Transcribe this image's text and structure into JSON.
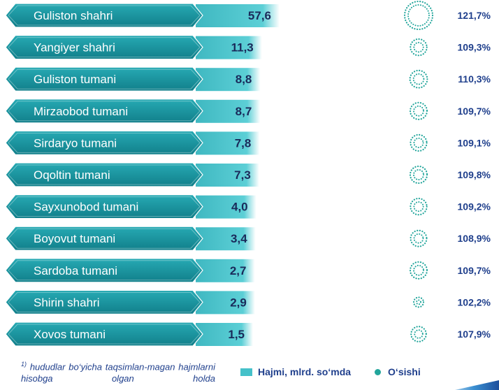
{
  "chart_data": {
    "type": "bar",
    "categories": [
      "Guliston shahri",
      "Yangiyer shahri",
      "Guliston  tumani",
      "Mirzaobod  tumani",
      "Sirdaryo tumani",
      "Oqoltin  tumani",
      "Sayxunobod  tumani",
      "Boyovut  tumani",
      "Sardoba tumani",
      "Shirin shahri",
      "Xovos tumani"
    ],
    "series": [
      {
        "name": "Hajmi, mlrd. so‘mda",
        "values": [
          57.6,
          11.3,
          8.8,
          8.7,
          7.8,
          7.3,
          4.0,
          3.4,
          2.7,
          2.9,
          1.5
        ],
        "labels": [
          "57,6",
          "11,3",
          "8,8",
          "8,7",
          "7,8",
          "7,3",
          "4,0",
          "3,4",
          "2,7",
          "2,9",
          "1,5"
        ],
        "color": "#45c1c9"
      },
      {
        "name": "O‘sishi",
        "values": [
          121.7,
          109.3,
          110.3,
          109.7,
          109.1,
          109.8,
          109.2,
          108.9,
          109.7,
          102.2,
          107.9
        ],
        "labels": [
          "121,7%",
          "109,3%",
          "110,3%",
          "109,7%",
          "109,1%",
          "109,8%",
          "109,2%",
          "108,9%",
          "109,7%",
          "102,2%",
          "107,9%"
        ],
        "color": "#22a59b"
      }
    ],
    "legend_position": "bottom"
  },
  "footnote": {
    "marker": "1)",
    "text": " hududlar  bo‘yicha  taqsimlan-magan hajmlarni hisobga olgan holda"
  },
  "colors": {
    "label_box": "#1a9aa5",
    "label_box_dark": "#117f8a",
    "bar": "#45c1c9",
    "dots": "#22a59b",
    "text_dark": "#1f3f8c"
  }
}
